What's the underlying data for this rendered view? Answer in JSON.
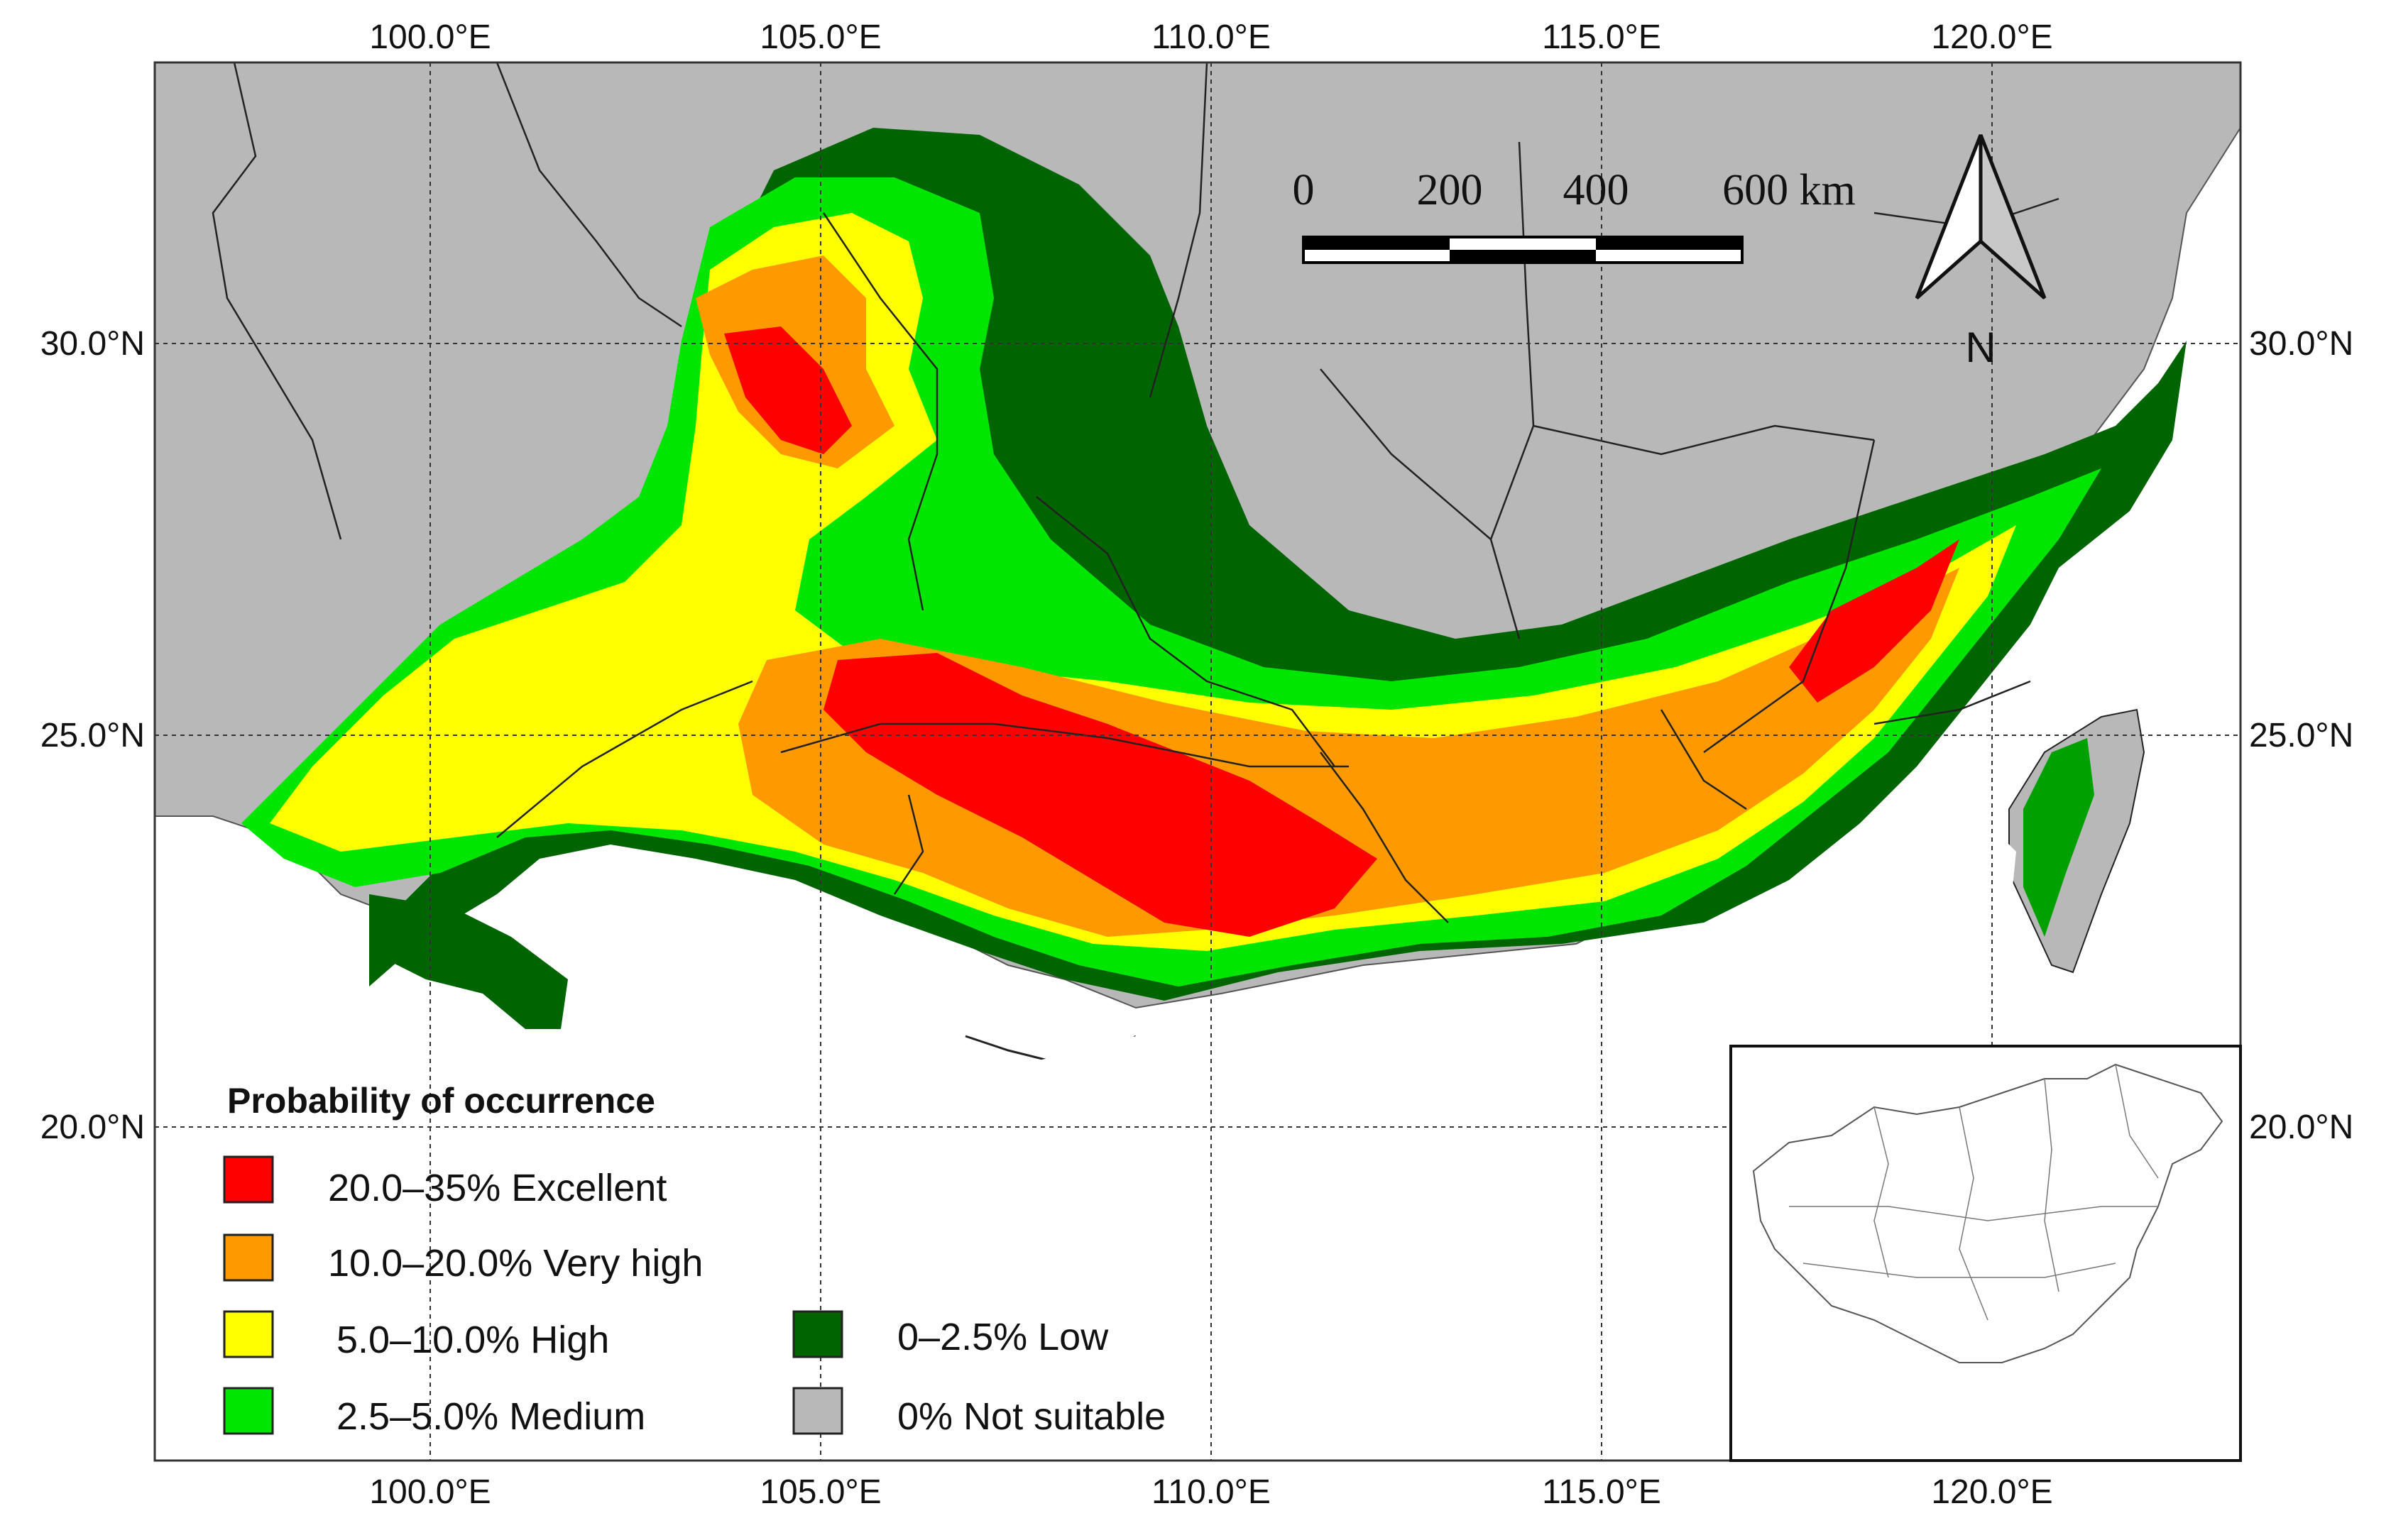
{
  "axes": {
    "lon_ticks": [
      "100.0°E",
      "105.0°E",
      "110.0°E",
      "115.0°E",
      "120.0°E"
    ],
    "lat_ticks": [
      "30.0°N",
      "25.0°N",
      "20.0°N"
    ],
    "lon_range": [
      96.4,
      123.2
    ],
    "lat_range": [
      15.7,
      33.6
    ],
    "grid": true
  },
  "scale_bar": {
    "labels": [
      "0",
      "200",
      "400",
      "600 km"
    ]
  },
  "north_arrow": {
    "label": "N",
    "icon": "north-arrow-icon"
  },
  "legend": {
    "title": "Probability of occurrence",
    "placement": "bottom-left",
    "items": [
      {
        "label": "20.0–35% Excellent",
        "color": "#ff0000"
      },
      {
        "label": "10.0–20.0% Very high",
        "color": "#ff9900"
      },
      {
        "label": "5.0–10.0% High",
        "color": "#ffff00"
      },
      {
        "label": "2.5–5.0% Medium",
        "color": "#00e600"
      },
      {
        "label": "0–2.5% Low",
        "color": "#006400"
      },
      {
        "label": "0% Not suitable",
        "color": "#b8b8b8"
      }
    ]
  },
  "inset": {
    "content": "china-outline-map"
  },
  "colors": {
    "excellent": "#ff0000",
    "very_high": "#ff9900",
    "high": "#ffff00",
    "medium": "#00e600",
    "low": "#006400",
    "not_suitable": "#b8b8b8",
    "border": "#222222"
  }
}
